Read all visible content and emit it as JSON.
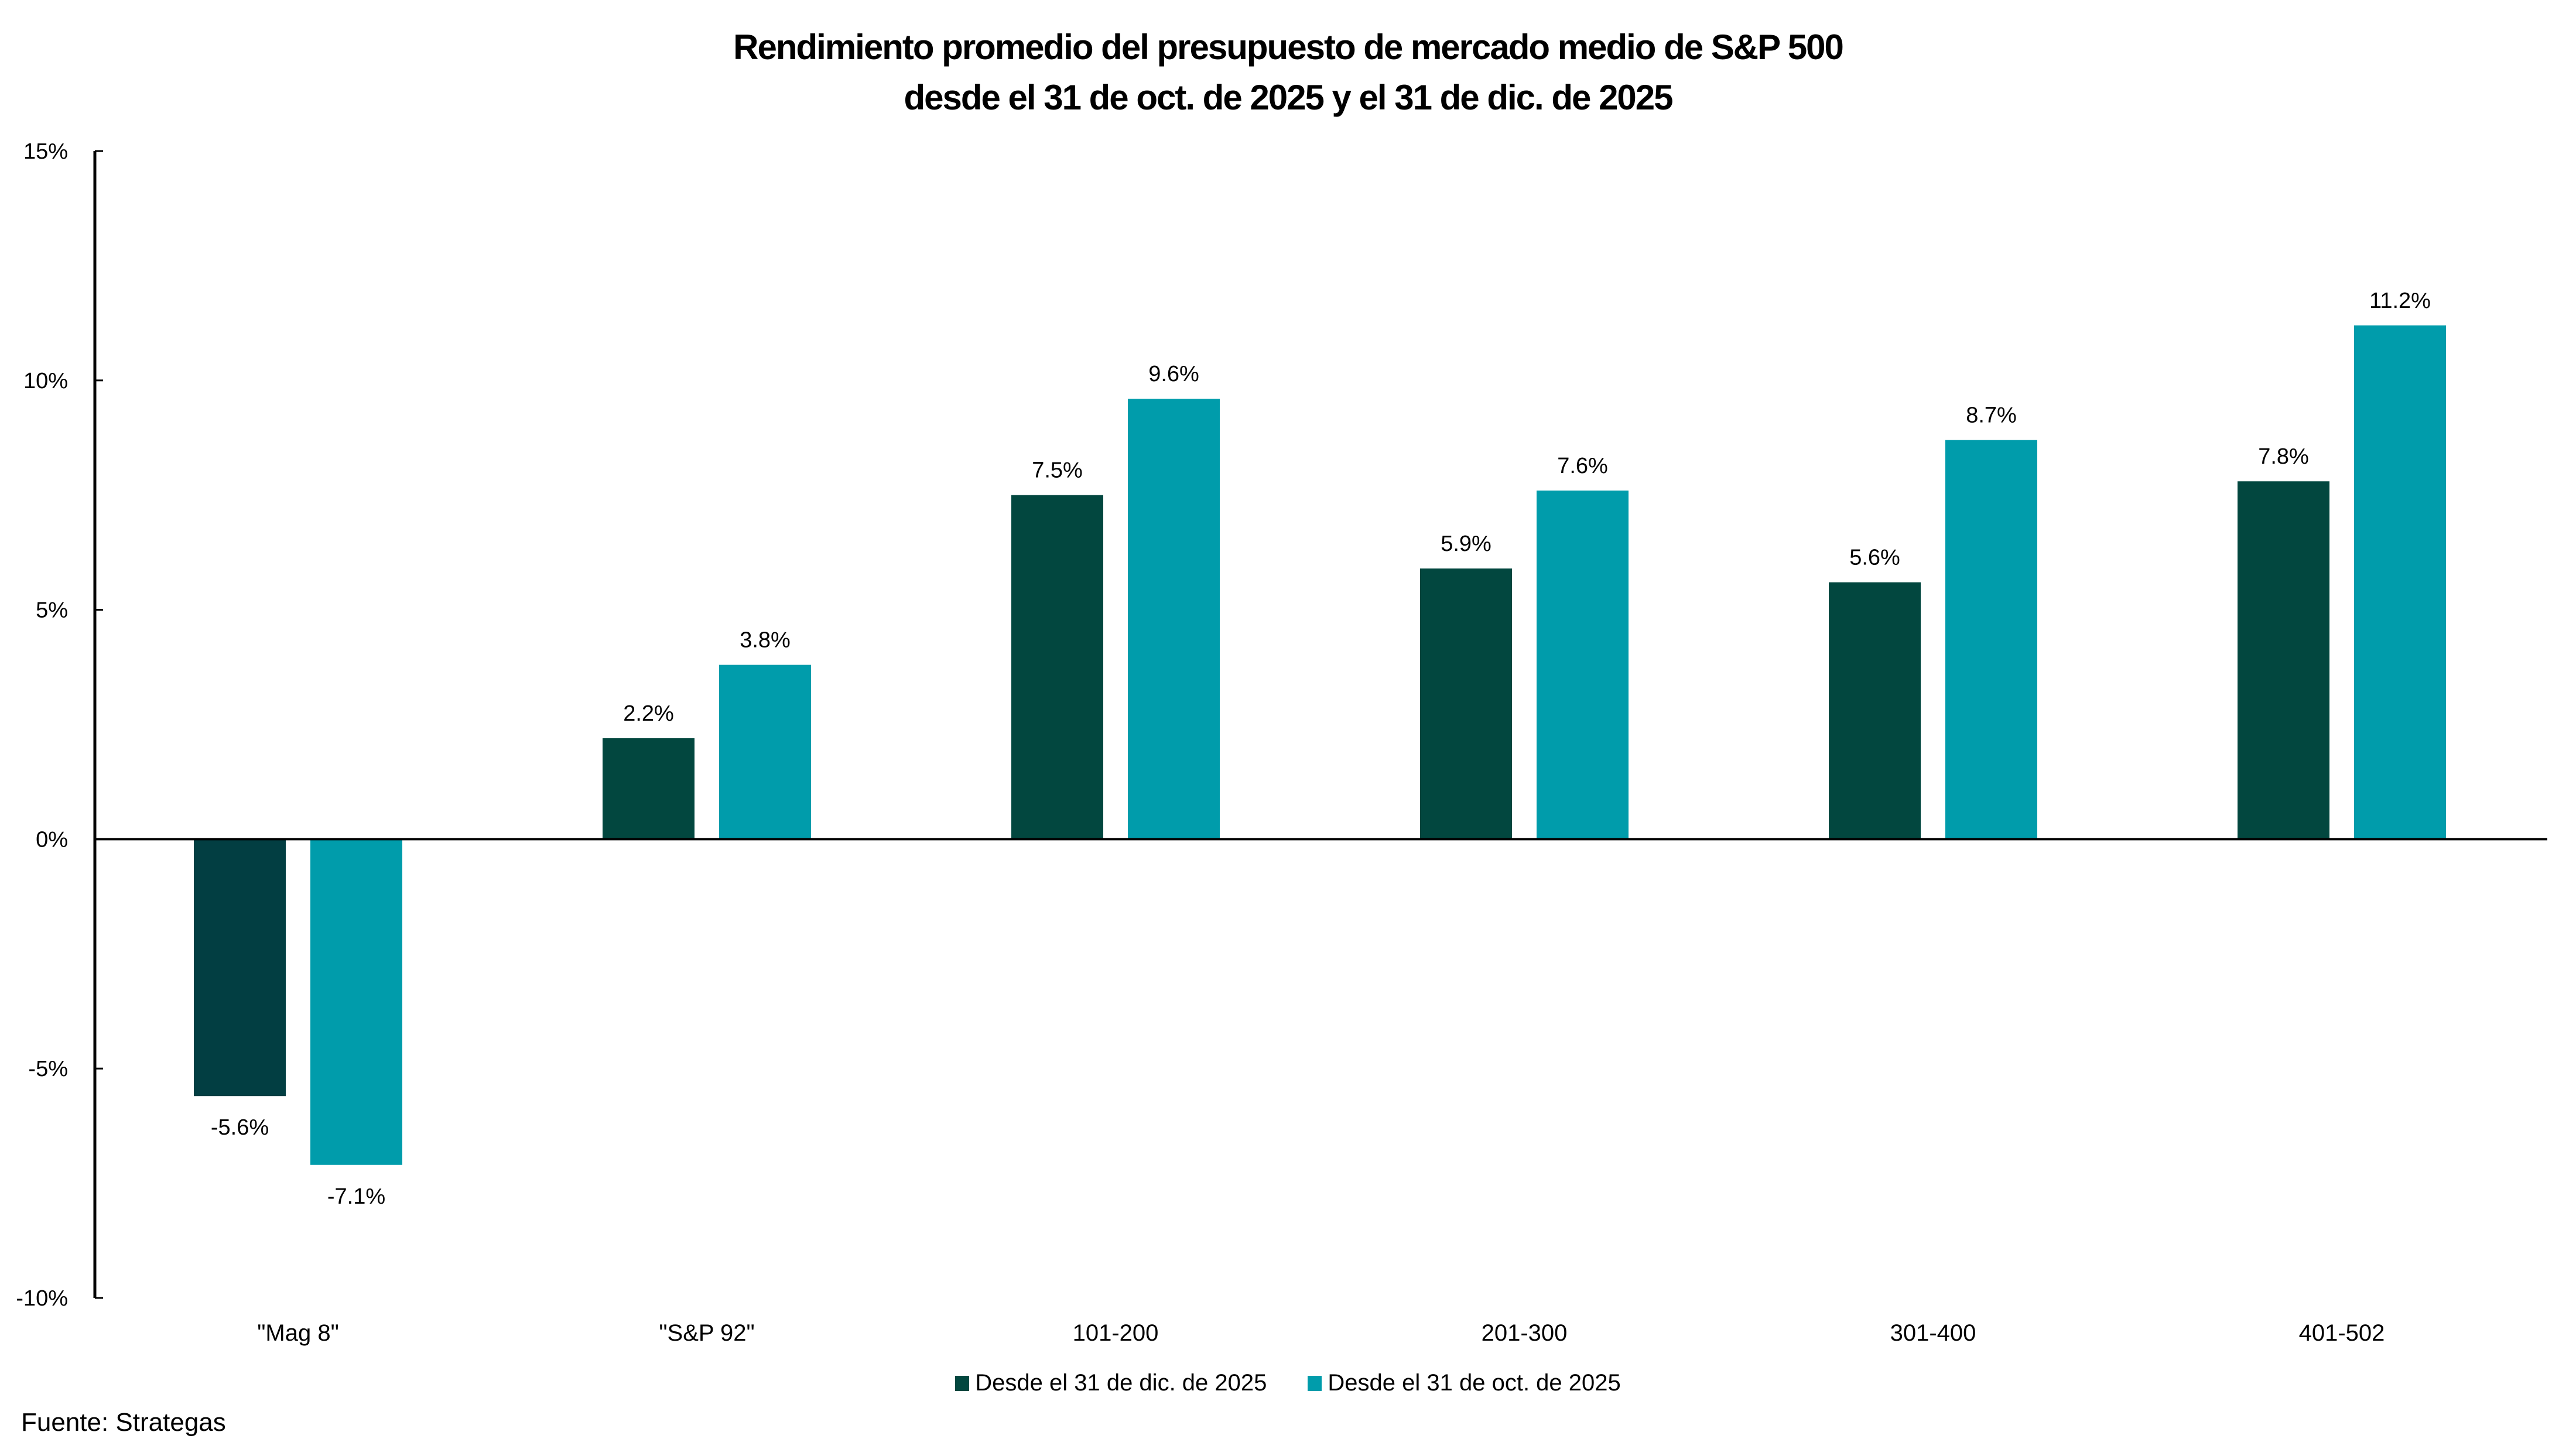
{
  "chart_data": {
    "type": "bar",
    "title": "Rendimiento promedio del presupuesto de mercado medio de S&P 500",
    "subtitle": "desde el 31 de oct. de 2025 y el 31 de dic. de 2025",
    "xlabel": "",
    "ylabel": "",
    "categories": [
      "\"Mag 8\"",
      "\"S&P 92\"",
      "101-200",
      "201-300",
      "301-400",
      "401-502"
    ],
    "series": [
      {
        "name": "Desde el 31 de dic. de 2025",
        "color": "#02473f",
        "values": [
          -5.6,
          2.2,
          7.5,
          5.9,
          5.6,
          7.8
        ],
        "labels": [
          "-5.6%",
          "2.2%",
          "7.5%",
          "5.9%",
          "5.6%",
          "7.8%"
        ]
      },
      {
        "name": "Desde el 31 de oct. de 2025",
        "color": "#009cab",
        "values": [
          -7.1,
          3.8,
          9.6,
          7.6,
          8.7,
          11.2
        ],
        "labels": [
          "-7.1%",
          "3.8%",
          "9.6%",
          "7.6%",
          "8.7%",
          "11.2%"
        ]
      }
    ],
    "ylim": [
      -10,
      15
    ],
    "yticks": [
      15,
      10,
      5,
      0,
      -5,
      -10
    ],
    "ytick_labels": [
      "15%",
      "10%",
      "5%",
      "0%",
      "-5%",
      "-10%"
    ],
    "grid": false,
    "legend_position": "bottom-center"
  },
  "title_lines": [
    "Rendimiento promedio del presupuesto de mercado medio de S&P 500",
    "desde el 31 de oct. de 2025 y el 31 de dic. de 2025"
  ],
  "legend": [
    {
      "label": "Desde el 31 de dic. de 2025",
      "color": "#02473f"
    },
    {
      "label": "Desde el 31 de oct. de 2025",
      "color": "#009cab"
    }
  ],
  "source": "Fuente: Strategas"
}
